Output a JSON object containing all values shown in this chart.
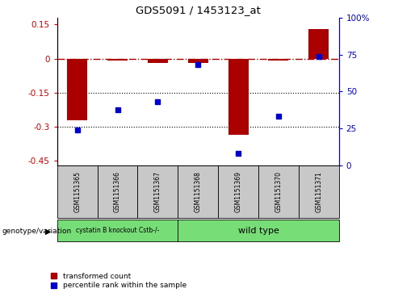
{
  "title": "GDS5091 / 1453123_at",
  "samples": [
    "GSM1151365",
    "GSM1151366",
    "GSM1151367",
    "GSM1151368",
    "GSM1151369",
    "GSM1151370",
    "GSM1151371"
  ],
  "red_bars": [
    -0.27,
    -0.01,
    -0.02,
    -0.02,
    -0.335,
    -0.01,
    0.13
  ],
  "blue_dots": [
    -0.315,
    -0.225,
    -0.19,
    -0.025,
    -0.415,
    -0.255,
    0.01
  ],
  "ylim_left": [
    -0.47,
    0.18
  ],
  "ylim_right": [
    0,
    100
  ],
  "yticks_left": [
    0.15,
    0.0,
    -0.15,
    -0.3,
    -0.45
  ],
  "yticks_right": [
    100,
    75,
    50,
    25,
    0
  ],
  "hlines": [
    -0.15,
    -0.3
  ],
  "legend_red": "transformed count",
  "legend_blue": "percentile rank within the sample",
  "left_label": "genotype/variation",
  "bar_color": "#AA0000",
  "dot_color": "#0000CC",
  "dash_color": "#AA0000",
  "tick_color_left": "#CC0000",
  "tick_color_right": "#0000CC",
  "group1_label": "cystatin B knockout Cstb-/-",
  "group2_label": "wild type",
  "group_color": "#77DD77",
  "sample_box_color": "#C8C8C8"
}
